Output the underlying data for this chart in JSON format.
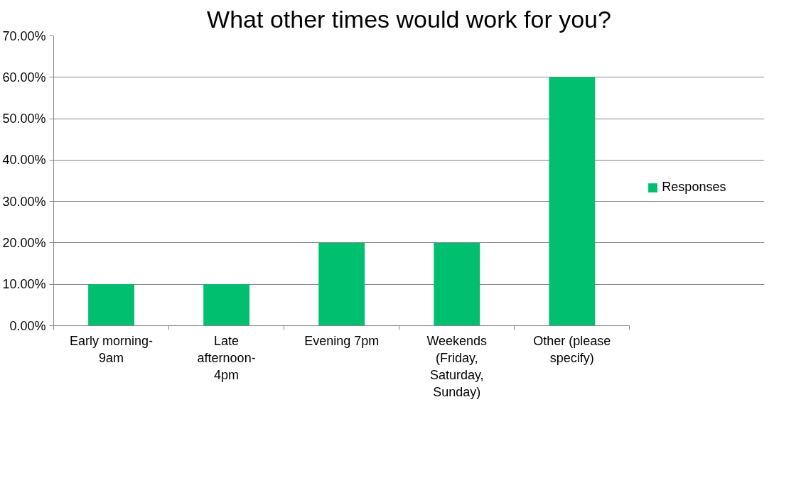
{
  "chart_data": {
    "type": "bar",
    "title": "What other times would work for you?",
    "categories": [
      "Early morning-\n9am",
      "Late\nafternoon-\n4pm",
      "Evening 7pm",
      "Weekends\n(Friday,\nSaturday,\nSunday)",
      "Other (please\nspecify)"
    ],
    "series": [
      {
        "name": "Responses",
        "color": "#00bf6f",
        "values": [
          10,
          10,
          20,
          20,
          60
        ]
      }
    ],
    "ylim": [
      0,
      70
    ],
    "yticks": [
      {
        "value": 0,
        "label": "0.00%"
      },
      {
        "value": 10,
        "label": "10.00%"
      },
      {
        "value": 20,
        "label": "20.00%"
      },
      {
        "value": 30,
        "label": "30.00%"
      },
      {
        "value": 40,
        "label": "40.00%"
      },
      {
        "value": 50,
        "label": "50.00%"
      },
      {
        "value": 60,
        "label": "60.00%"
      },
      {
        "value": 70,
        "label": "70.00%"
      }
    ],
    "grid": "y",
    "legend": "right"
  }
}
